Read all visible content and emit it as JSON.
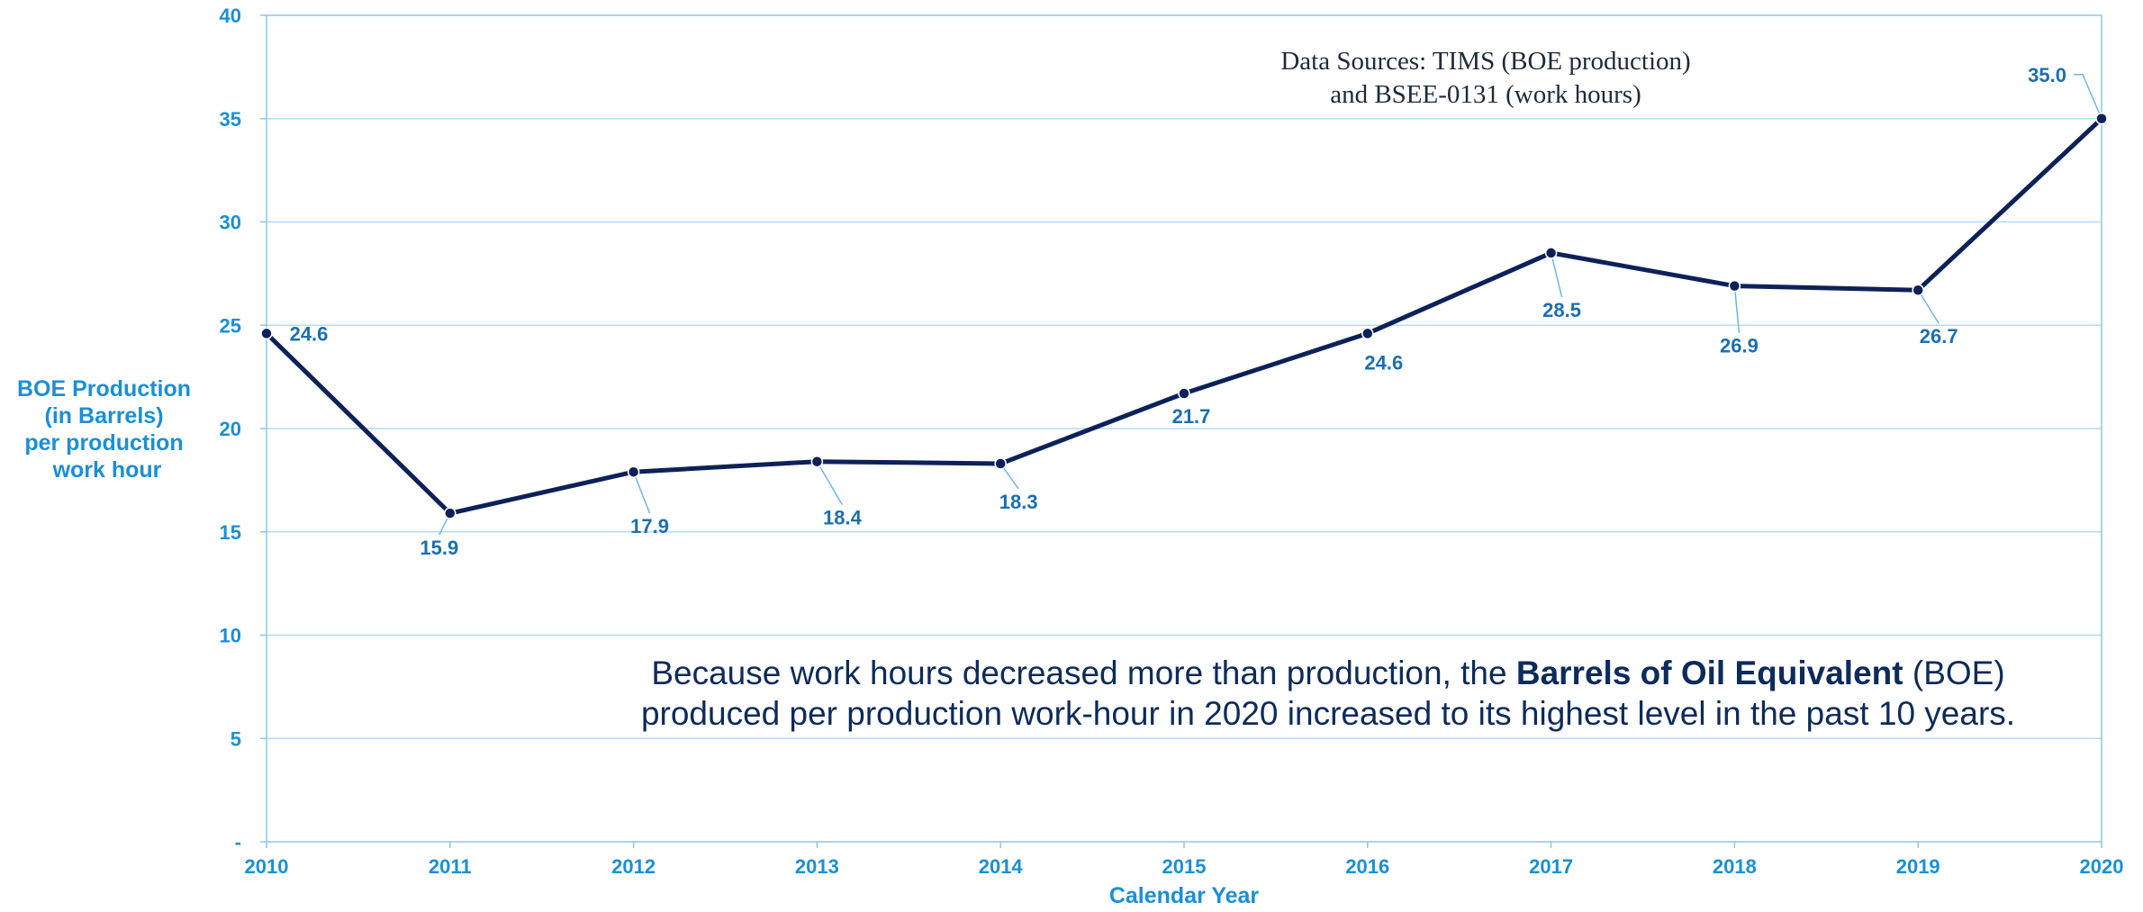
{
  "chart_data": {
    "type": "line",
    "x": [
      "2010",
      "2011",
      "2012",
      "2013",
      "2014",
      "2015",
      "2016",
      "2017",
      "2018",
      "2019",
      "2020"
    ],
    "series": [
      {
        "values": [
          24.6,
          15.9,
          17.9,
          18.4,
          18.3,
          21.7,
          24.6,
          28.5,
          26.9,
          26.7,
          35.0
        ],
        "data_labels": [
          "24.6",
          "15.9",
          "17.9",
          "18.4",
          "18.3",
          "21.7",
          "24.6",
          "28.5",
          "26.9",
          "26.7",
          "35.0"
        ]
      }
    ],
    "xlabel": "Calendar Year",
    "ylabel": [
      "BOE Production",
      "(in Barrels)",
      "per production",
      "work hour"
    ],
    "ylim": [
      0,
      40
    ],
    "yticks": [
      0,
      5,
      10,
      15,
      20,
      25,
      30,
      35,
      40
    ],
    "ytick_labels": [
      "-",
      "5",
      "10",
      "15",
      "20",
      "25",
      "30",
      "35",
      "40"
    ],
    "grid": "horizontal",
    "legend": "none",
    "annotation": {
      "line1_before": "Because work hours decreased more than production, the ",
      "line1_bold": "Barrels of Oil Equivalent",
      "line1_after": " (BOE)",
      "line2": "produced per production work-hour in 2020 increased to its highest level in the past 10 years."
    },
    "source_note": {
      "line1": "Data Sources: TIMS (BOE production)",
      "line2": "and BSEE-0131 (work hours)"
    },
    "colors": {
      "line": "#0d2159",
      "grid": "#b6dcf2",
      "frame": "#8cc6ea",
      "tick_text": "#1a8fd8",
      "data_label": "#1b6fb3",
      "leader": "#6fb7e6",
      "annotation": "#0d2b5b"
    }
  }
}
